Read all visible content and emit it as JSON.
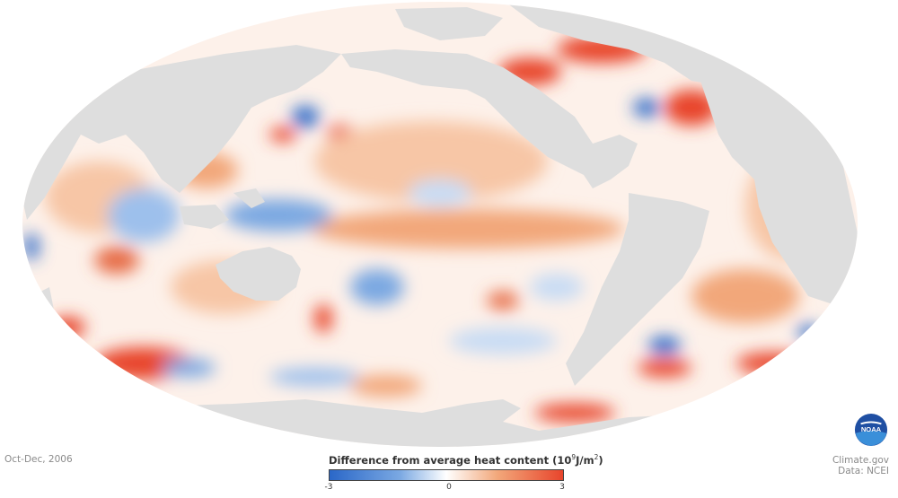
{
  "period_label": "Oct-Dec, 2006",
  "legend": {
    "title_main": "Difference from average heat content (10",
    "title_sup1": "9",
    "title_mid": "J/m",
    "title_sup2": "2",
    "title_end": ")",
    "tick_min": "-3",
    "tick_mid": "0",
    "tick_max": "3"
  },
  "credits": {
    "source": "Climate.gov",
    "data": "Data: NCEI"
  },
  "logo_text": "NOAA",
  "colors": {
    "land": "#dedede",
    "negative": "#2a67c8",
    "neutral": "#ffffff",
    "positive": "#e8452c"
  }
}
